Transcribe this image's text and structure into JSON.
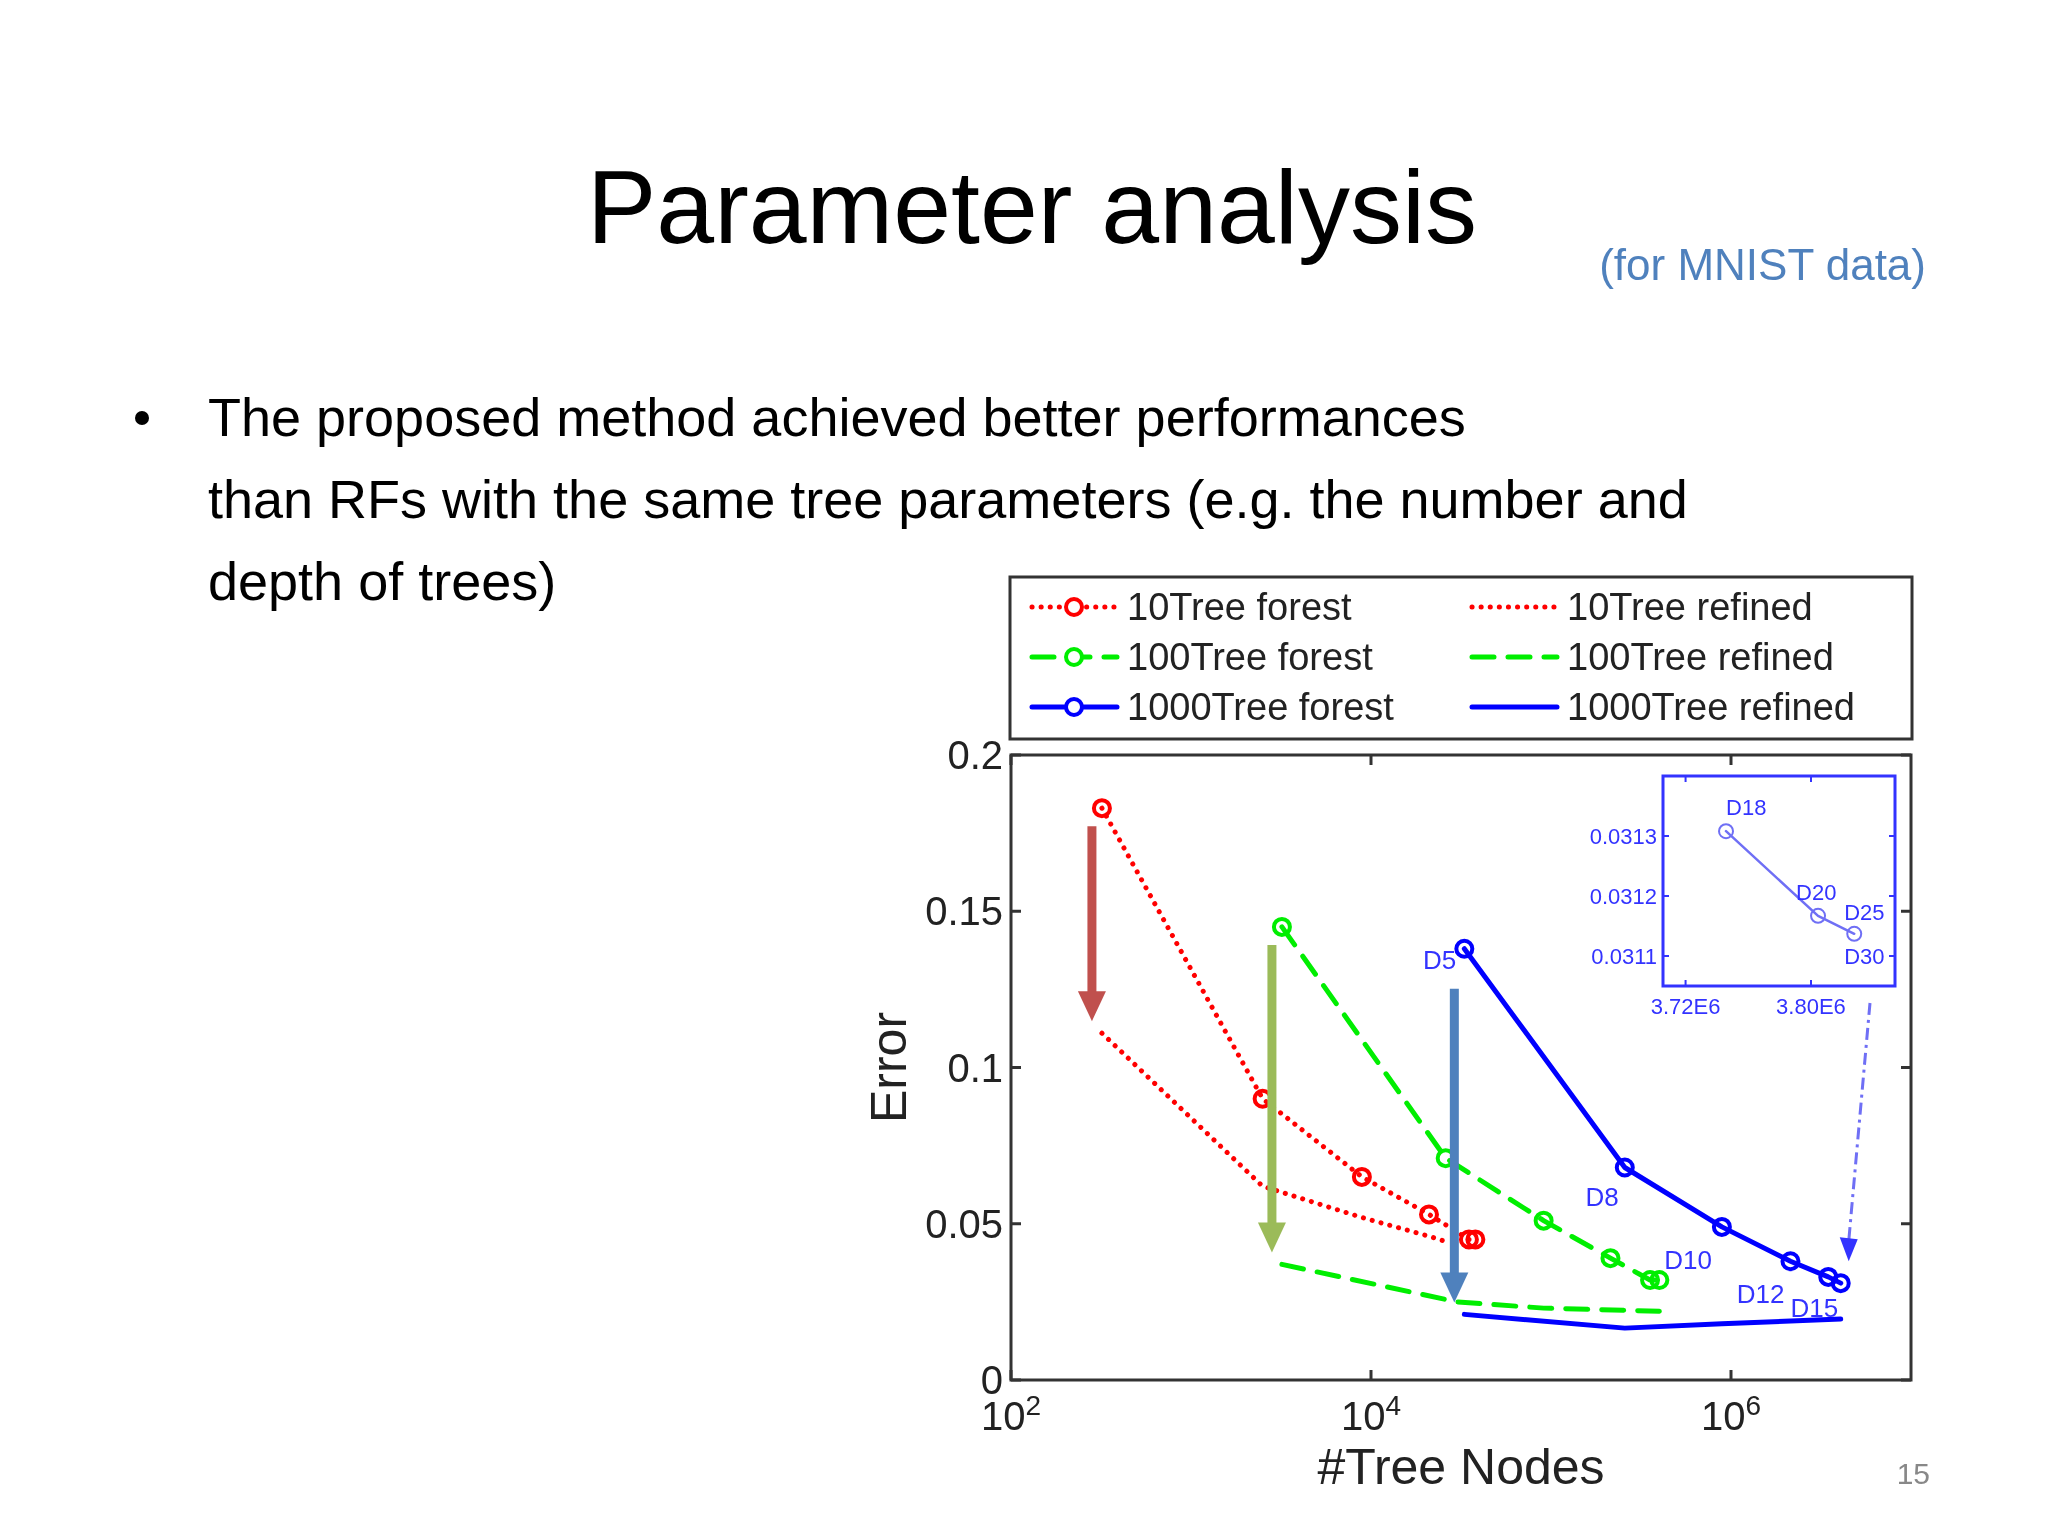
{
  "chart_data": [
    {
      "type": "line",
      "title": "Parameter analysis",
      "subtitle": "(for MNIST data)",
      "xlabel": "#Tree Nodes",
      "ylabel": "Error",
      "log": "x",
      "xlim": [
        100,
        10000000
      ],
      "ylim": [
        0,
        0.2
      ],
      "xticks": [
        {
          "value": 100,
          "label": "10$^{2}$"
        },
        {
          "value": 10000,
          "label": "10$^{4}$"
        },
        {
          "value": 1000000,
          "label": "10$^{6}$"
        }
      ],
      "yticks": [
        0,
        0.05,
        0.1,
        0.15,
        0.2
      ],
      "legend": "top",
      "series": [
        {
          "name": "10Tree forest",
          "color": "#ff0000",
          "marker": "circle",
          "line_style": "dotted",
          "x": [
            320,
            2500,
            8900,
            21000,
            35000,
            38000
          ],
          "values": [
            0.183,
            0.09,
            0.065,
            0.053,
            0.045,
            0.045
          ]
        },
        {
          "name": "10Tree refined",
          "color": "#ff0000",
          "marker": "none",
          "line_style": "dotted",
          "x": [
            320,
            2500,
            8900,
            21000,
            27000
          ],
          "values": [
            0.111,
            0.062,
            0.052,
            0.046,
            0.044
          ]
        },
        {
          "name": "100Tree forest",
          "color": "#00ee00",
          "marker": "circle",
          "line_style": "dashed",
          "x": [
            3200,
            26000,
            91000,
            214000,
            355000,
            400000
          ],
          "values": [
            0.145,
            0.071,
            0.051,
            0.039,
            0.032,
            0.032
          ]
        },
        {
          "name": "100Tree refined",
          "color": "#00ee00",
          "marker": "none",
          "line_style": "dashed",
          "x": [
            3200,
            30000,
            91000,
            400000
          ],
          "values": [
            0.037,
            0.025,
            0.023,
            0.022
          ]
        },
        {
          "name": "1000Tree forest",
          "color": "#0000ff",
          "marker": "circle",
          "line_style": "solid",
          "x": [
            33000,
            257000,
            890000,
            2140000,
            3470000,
            4070000
          ],
          "values": [
            0.138,
            0.068,
            0.049,
            0.038,
            0.033,
            0.031
          ]
        },
        {
          "name": "1000Tree refined",
          "color": "#0000ff",
          "marker": "none",
          "line_style": "solid",
          "x": [
            33000,
            257000,
            890000,
            4070000
          ],
          "values": [
            0.021,
            0.0166,
            0.018,
            0.0195
          ]
        }
      ],
      "annotations": [
        "The proposed method achieved better performances\nthan RFs with the same tree parameters (e.g. the number and depth of trees)",
        "15",
        {
          "text": "D5",
          "x": 33000,
          "y": 0.138
        },
        {
          "text": "D8",
          "x": 257000,
          "y": 0.068
        },
        {
          "text": "D10",
          "x": 890000,
          "y": 0.049
        },
        {
          "text": "D12",
          "x": 2140000,
          "y": 0.038
        },
        {
          "text": "D15",
          "x": 3470000,
          "y": 0.033
        }
      ]
    },
    {
      "type": "line",
      "xlim": [
        3705600,
        3853600
      ],
      "ylim": [
        0.03105,
        0.0314
      ],
      "xticks": [
        {
          "value": 3720000,
          "label": "3.72E6"
        },
        {
          "value": 3800000,
          "label": "3.80E6"
        }
      ],
      "yticks": [
        0.0311,
        0.0312,
        0.0313
      ],
      "series": [
        {
          "color": "#6f6ff5",
          "marker": "circle",
          "line_style": "solid",
          "x": [
            3745800,
            3804500,
            3827600
          ],
          "values": [
            0.031308,
            0.031167,
            0.031137
          ]
        }
      ],
      "annotations": [
        {
          "text": "D18",
          "x": 3745800,
          "y": 0.031308
        },
        {
          "text": "D20",
          "x": 3804500,
          "y": 0.031167
        },
        {
          "text": "D25",
          "x": 3827600,
          "y": 0.031137
        },
        {
          "text": "D30",
          "x": 3827600,
          "y": 0.031137
        }
      ]
    }
  ]
}
